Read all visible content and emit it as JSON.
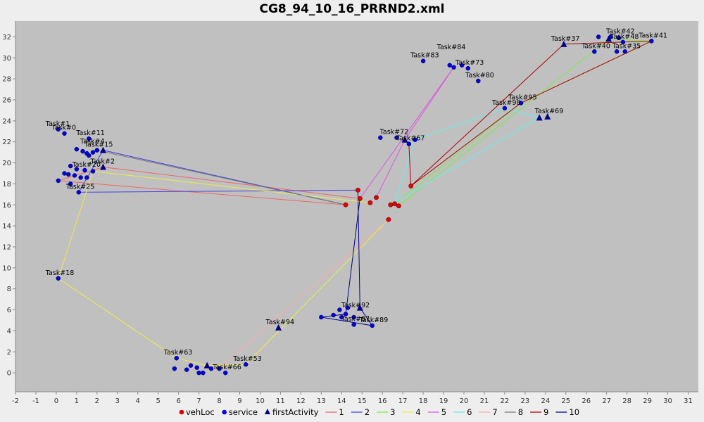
{
  "chart_data": {
    "type": "scatter",
    "title": "CG8_94_10_16_PRRND2.xml",
    "xlim": [
      -2,
      31.5
    ],
    "ylim": [
      -1.8,
      33.5
    ],
    "xticks": [
      -2,
      -1,
      0,
      1,
      2,
      3,
      4,
      5,
      6,
      7,
      8,
      9,
      10,
      11,
      12,
      13,
      14,
      15,
      16,
      17,
      18,
      19,
      20,
      21,
      22,
      23,
      24,
      25,
      26,
      27,
      28,
      29,
      30,
      31
    ],
    "yticks": [
      0,
      2,
      4,
      6,
      8,
      10,
      12,
      14,
      16,
      18,
      20,
      22,
      24,
      26,
      28,
      30,
      32
    ],
    "grid": false,
    "legend_position": "bottom",
    "colors": {
      "plot_bg": "#c0c0c0",
      "vehLoc": "#dd0000",
      "service": "#0000dd",
      "firstActivity": "#000088",
      "route_1": "#ee6666",
      "route_2": "#4444dd",
      "route_3": "#77ee44",
      "route_4": "#eeee44",
      "route_5": "#dd55dd",
      "route_6": "#66eeee",
      "route_7": "#ffaaaa",
      "route_8": "#777777",
      "route_9": "#aa0000",
      "route_10": "#000088"
    },
    "legend": [
      {
        "label": "vehLoc",
        "marker": "circle",
        "color": "#dd0000"
      },
      {
        "label": "service",
        "marker": "circle",
        "color": "#0000dd"
      },
      {
        "label": "firstActivity",
        "marker": "triangle",
        "color": "#000088"
      },
      {
        "label": "1",
        "marker": "line",
        "color": "#ee6666"
      },
      {
        "label": "2",
        "marker": "line",
        "color": "#4444dd"
      },
      {
        "label": "3",
        "marker": "line",
        "color": "#77ee44"
      },
      {
        "label": "4",
        "marker": "line",
        "color": "#eeee44"
      },
      {
        "label": "5",
        "marker": "line",
        "color": "#dd55dd"
      },
      {
        "label": "6",
        "marker": "line",
        "color": "#66eeee"
      },
      {
        "label": "7",
        "marker": "line",
        "color": "#ffaaaa"
      },
      {
        "label": "8",
        "marker": "line",
        "color": "#777777"
      },
      {
        "label": "9",
        "marker": "line",
        "color": "#aa0000"
      },
      {
        "label": "10",
        "marker": "line",
        "color": "#000088"
      }
    ],
    "vehLoc": [
      [
        14.8,
        17.4
      ],
      [
        14.9,
        16.6
      ],
      [
        15.4,
        16.2
      ],
      [
        14.2,
        16.0
      ],
      [
        15.7,
        16.7
      ],
      [
        16.4,
        16.0
      ],
      [
        16.6,
        16.1
      ],
      [
        16.8,
        15.9
      ],
      [
        16.3,
        14.6
      ],
      [
        17.4,
        17.8
      ]
    ],
    "service": [
      [
        0.1,
        23.2
      ],
      [
        0.4,
        22.8
      ],
      [
        1.6,
        22.3
      ],
      [
        1.0,
        21.3
      ],
      [
        1.3,
        21.1
      ],
      [
        1.5,
        20.9
      ],
      [
        1.8,
        21.0
      ],
      [
        2.0,
        21.2
      ],
      [
        1.6,
        20.7
      ],
      [
        0.7,
        19.7
      ],
      [
        1.0,
        19.4
      ],
      [
        1.4,
        19.3
      ],
      [
        1.8,
        19.2
      ],
      [
        0.4,
        19.0
      ],
      [
        0.6,
        18.9
      ],
      [
        0.9,
        18.8
      ],
      [
        1.2,
        18.6
      ],
      [
        1.5,
        18.6
      ],
      [
        0.1,
        18.3
      ],
      [
        0.7,
        18.0
      ],
      [
        1.1,
        17.2
      ],
      [
        0.1,
        9.0
      ],
      [
        5.9,
        1.4
      ],
      [
        5.8,
        0.4
      ],
      [
        6.4,
        0.3
      ],
      [
        6.6,
        0.7
      ],
      [
        6.9,
        0.5
      ],
      [
        7.0,
        0.0
      ],
      [
        7.2,
        0.0
      ],
      [
        7.6,
        0.4
      ],
      [
        8.0,
        0.4
      ],
      [
        8.3,
        0.0
      ],
      [
        9.3,
        0.8
      ],
      [
        13.0,
        5.3
      ],
      [
        13.6,
        5.5
      ],
      [
        13.9,
        6.0
      ],
      [
        14.2,
        5.6
      ],
      [
        14.6,
        5.3
      ],
      [
        14.3,
        6.2
      ],
      [
        14.0,
        5.3
      ],
      [
        14.6,
        4.6
      ],
      [
        15.5,
        4.5
      ],
      [
        15.9,
        22.4
      ],
      [
        16.7,
        22.4
      ],
      [
        17.3,
        21.8
      ],
      [
        17.6,
        22.2
      ],
      [
        18.0,
        29.7
      ],
      [
        19.3,
        29.3
      ],
      [
        19.5,
        29.1
      ],
      [
        19.9,
        29.3
      ],
      [
        20.2,
        29.0
      ],
      [
        20.7,
        27.8
      ],
      [
        22.0,
        25.2
      ],
      [
        22.8,
        25.7
      ],
      [
        26.4,
        30.6
      ],
      [
        26.6,
        32.0
      ],
      [
        27.2,
        32.0
      ],
      [
        27.6,
        31.9
      ],
      [
        27.9,
        30.6
      ],
      [
        27.5,
        30.6
      ],
      [
        27.8,
        31.5
      ],
      [
        29.2,
        31.6
      ]
    ],
    "firstActivity": [
      [
        2.3,
        21.2
      ],
      [
        2.3,
        19.6
      ],
      [
        10.9,
        4.3
      ],
      [
        24.9,
        31.3
      ],
      [
        23.7,
        24.3
      ],
      [
        24.1,
        24.4
      ],
      [
        17.1,
        22.2
      ],
      [
        14.9,
        6.2
      ],
      [
        7.4,
        0.7
      ],
      [
        27.1,
        31.8
      ]
    ],
    "labels": [
      {
        "text": "Task#1",
        "x": 0.1,
        "y": 23.2
      },
      {
        "text": "Task#0",
        "x": 0.4,
        "y": 22.8
      },
      {
        "text": "Task#11",
        "x": 1.6,
        "y": 22.3
      },
      {
        "text": "Task#4",
        "x": 1.8,
        "y": 21.5
      },
      {
        "text": "Task#15",
        "x": 2.0,
        "y": 21.2
      },
      {
        "text": "Task#2",
        "x": 2.3,
        "y": 19.6
      },
      {
        "text": "Task#20",
        "x": 1.4,
        "y": 19.3
      },
      {
        "text": "Task#25",
        "x": 1.1,
        "y": 17.2
      },
      {
        "text": "Task#18",
        "x": 0.1,
        "y": 9.0
      },
      {
        "text": "Task#63",
        "x": 5.9,
        "y": 1.4
      },
      {
        "text": "Task#66",
        "x": 8.3,
        "y": 0.0
      },
      {
        "text": "Task#53",
        "x": 9.3,
        "y": 0.8
      },
      {
        "text": "Task#94",
        "x": 10.9,
        "y": 4.3
      },
      {
        "text": "Task#92",
        "x": 14.6,
        "y": 5.9
      },
      {
        "text": "Task#87",
        "x": 14.6,
        "y": 4.6
      },
      {
        "text": "Task#89",
        "x": 15.5,
        "y": 4.5
      },
      {
        "text": "Task#72",
        "x": 16.5,
        "y": 22.4
      },
      {
        "text": "Task#67",
        "x": 17.3,
        "y": 21.8
      },
      {
        "text": "Task#83",
        "x": 18.0,
        "y": 29.7
      },
      {
        "text": "Task#84",
        "x": 19.3,
        "y": 30.5
      },
      {
        "text": "Task#73",
        "x": 20.2,
        "y": 29.0
      },
      {
        "text": "Task#80",
        "x": 20.7,
        "y": 27.8
      },
      {
        "text": "Task#95",
        "x": 22.8,
        "y": 25.7
      },
      {
        "text": "Task#98",
        "x": 22.0,
        "y": 25.2
      },
      {
        "text": "Task#69",
        "x": 24.1,
        "y": 24.4
      },
      {
        "text": "Task#37",
        "x": 24.9,
        "y": 31.3
      },
      {
        "text": "Task#40",
        "x": 26.4,
        "y": 30.6
      },
      {
        "text": "Task#35",
        "x": 27.9,
        "y": 30.6
      },
      {
        "text": "Task#48",
        "x": 27.8,
        "y": 31.5
      },
      {
        "text": "Task#42",
        "x": 27.6,
        "y": 32.0
      },
      {
        "text": "Task#41",
        "x": 29.2,
        "y": 31.6
      }
    ],
    "routes": [
      {
        "name": "1",
        "points": [
          [
            14.9,
            16.6
          ],
          [
            2.3,
            19.6
          ],
          [
            0.1,
            18.3
          ],
          [
            14.2,
            16.0
          ]
        ]
      },
      {
        "name": "2",
        "points": [
          [
            14.2,
            16.0
          ],
          [
            2.3,
            21.2
          ],
          [
            1.1,
            17.2
          ],
          [
            14.8,
            17.4
          ]
        ]
      },
      {
        "name": "3",
        "points": [
          [
            16.8,
            15.9
          ],
          [
            27.1,
            31.8
          ],
          [
            29.2,
            31.6
          ],
          [
            22.8,
            25.7
          ],
          [
            16.6,
            16.1
          ]
        ]
      },
      {
        "name": "4",
        "points": [
          [
            15.4,
            16.2
          ],
          [
            1.8,
            19.2
          ],
          [
            0.1,
            9.0
          ],
          [
            5.9,
            1.4
          ],
          [
            7.4,
            0.7
          ],
          [
            9.3,
            0.8
          ],
          [
            16.3,
            14.6
          ]
        ]
      },
      {
        "name": "5",
        "points": [
          [
            14.9,
            16.6
          ],
          [
            19.5,
            29.1
          ],
          [
            17.1,
            22.2
          ],
          [
            15.7,
            16.7
          ]
        ]
      },
      {
        "name": "6",
        "points": [
          [
            16.4,
            16.0
          ],
          [
            23.7,
            24.3
          ],
          [
            22.0,
            25.2
          ],
          [
            17.6,
            22.2
          ],
          [
            16.6,
            16.1
          ]
        ]
      },
      {
        "name": "7",
        "points": [
          [
            16.3,
            14.6
          ],
          [
            8.0,
            0.4
          ],
          [
            7.6,
            0.4
          ]
        ]
      },
      {
        "name": "8",
        "points": [
          [
            14.2,
            16.0
          ],
          [
            2.0,
            21.2
          ],
          [
            1.6,
            20.7
          ]
        ]
      },
      {
        "name": "9",
        "points": [
          [
            17.4,
            17.8
          ],
          [
            24.9,
            31.3
          ],
          [
            29.2,
            31.6
          ],
          [
            22.8,
            25.7
          ],
          [
            17.4,
            17.8
          ],
          [
            17.3,
            21.8
          ]
        ]
      },
      {
        "name": "10",
        "points": [
          [
            14.9,
            16.6
          ],
          [
            14.2,
            5.6
          ],
          [
            13.0,
            5.3
          ],
          [
            15.5,
            4.5
          ],
          [
            14.9,
            6.2
          ],
          [
            14.8,
            17.4
          ]
        ]
      }
    ]
  }
}
